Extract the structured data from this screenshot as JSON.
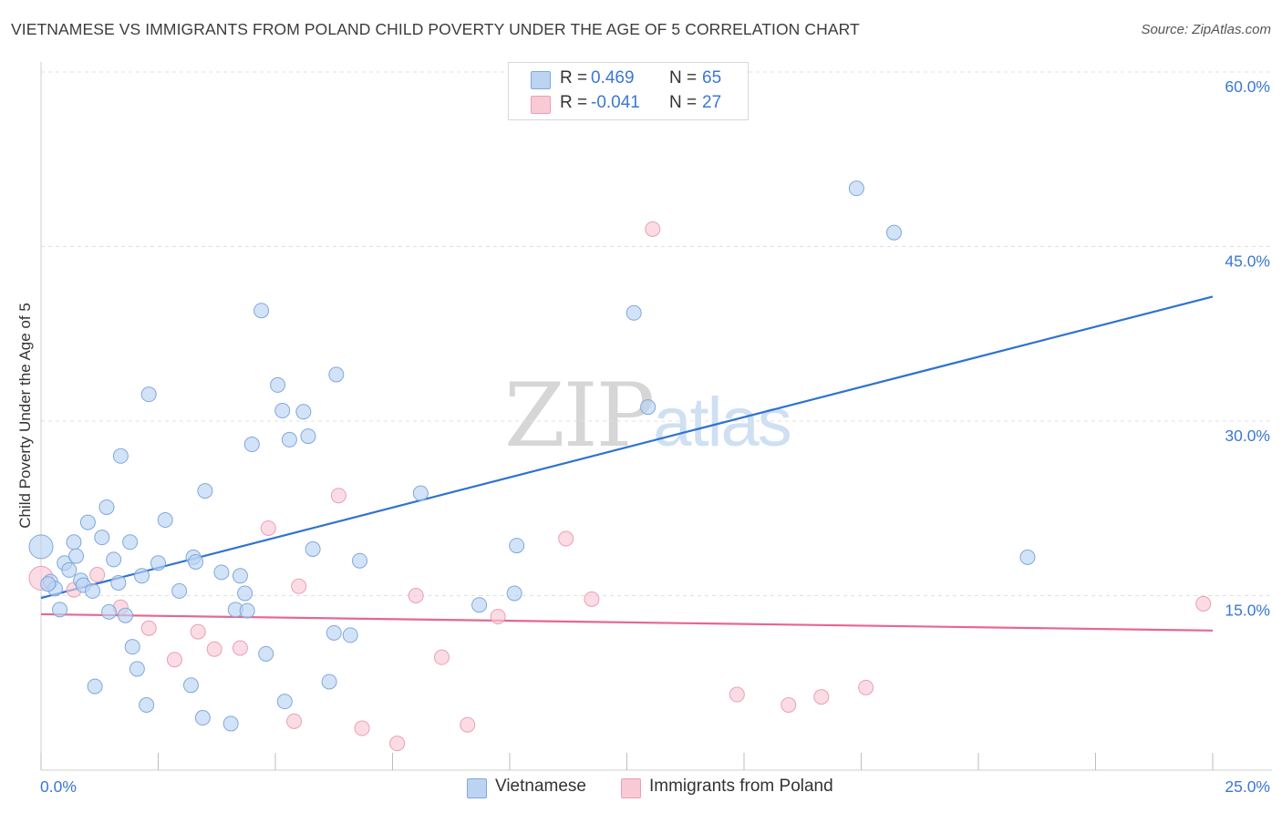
{
  "title": "VIETNAMESE VS IMMIGRANTS FROM POLAND CHILD POVERTY UNDER THE AGE OF 5 CORRELATION CHART",
  "source": "Source: ZipAtlas.com",
  "watermark": {
    "zip": "ZIP",
    "atlas": "atlas"
  },
  "colors": {
    "blue_fill": "#bcd4f2",
    "blue_stroke": "#7ea8dd",
    "blue_line": "#2e73cf",
    "pink_fill": "#f9c9d6",
    "pink_stroke": "#ea9fb5",
    "pink_line": "#e7668f",
    "tick_label": "#3a78d0",
    "grid": "#e0e0e0"
  },
  "legend_top": {
    "rows": [
      {
        "r_label": "R =",
        "r_value": "0.469",
        "n_label": "N =",
        "n_value": "65"
      },
      {
        "r_label": "R =",
        "r_value": "-0.041",
        "n_label": "N =",
        "n_value": "27"
      }
    ]
  },
  "bottom_legend": [
    "Vietnamese",
    "Immigrants from Poland"
  ],
  "chart_data": {
    "type": "scatter",
    "title": "VIETNAMESE VS IMMIGRANTS FROM POLAND CHILD POVERTY UNDER THE AGE OF 5 CORRELATION CHART",
    "xlabel": "",
    "ylabel": "Child Poverty Under the Age of 5",
    "xlim": [
      0,
      25
    ],
    "ylim": [
      0,
      60
    ],
    "x_tick_labels": [
      "0.0%",
      "25.0%"
    ],
    "y_ticks": [
      15,
      30,
      45,
      60
    ],
    "y_tick_labels": [
      "15.0%",
      "30.0%",
      "45.0%",
      "60.0%"
    ],
    "grid": "horizontal dashed",
    "legend": "top-center",
    "series": [
      {
        "name": "Vietnamese",
        "points": [
          [
            0.0,
            19.2
          ],
          [
            0.2,
            16.2
          ],
          [
            0.3,
            15.6
          ],
          [
            0.4,
            13.8
          ],
          [
            0.5,
            17.8
          ],
          [
            0.6,
            17.2
          ],
          [
            0.7,
            19.6
          ],
          [
            0.75,
            18.4
          ],
          [
            0.85,
            16.3
          ],
          [
            0.9,
            15.9
          ],
          [
            1.0,
            21.3
          ],
          [
            1.1,
            15.4
          ],
          [
            1.15,
            7.2
          ],
          [
            1.3,
            20.0
          ],
          [
            1.4,
            22.6
          ],
          [
            1.45,
            13.6
          ],
          [
            1.55,
            18.1
          ],
          [
            1.65,
            16.1
          ],
          [
            1.7,
            27.0
          ],
          [
            1.8,
            13.3
          ],
          [
            1.9,
            19.6
          ],
          [
            1.95,
            10.6
          ],
          [
            2.05,
            8.7
          ],
          [
            2.15,
            16.7
          ],
          [
            2.25,
            5.6
          ],
          [
            2.3,
            32.3
          ],
          [
            2.5,
            17.8
          ],
          [
            2.65,
            21.5
          ],
          [
            2.95,
            15.4
          ],
          [
            3.2,
            7.3
          ],
          [
            3.25,
            18.3
          ],
          [
            3.3,
            17.9
          ],
          [
            3.45,
            4.5
          ],
          [
            3.5,
            24.0
          ],
          [
            3.85,
            17.0
          ],
          [
            4.05,
            4.0
          ],
          [
            4.15,
            13.8
          ],
          [
            4.25,
            16.7
          ],
          [
            4.35,
            15.2
          ],
          [
            4.4,
            13.7
          ],
          [
            4.5,
            28.0
          ],
          [
            4.7,
            39.5
          ],
          [
            4.8,
            10.0
          ],
          [
            5.05,
            33.1
          ],
          [
            5.15,
            30.9
          ],
          [
            5.2,
            5.9
          ],
          [
            5.3,
            28.4
          ],
          [
            5.6,
            30.8
          ],
          [
            5.7,
            28.7
          ],
          [
            5.8,
            19.0
          ],
          [
            6.15,
            7.6
          ],
          [
            6.25,
            11.8
          ],
          [
            6.3,
            34.0
          ],
          [
            6.6,
            11.6
          ],
          [
            6.8,
            18.0
          ],
          [
            8.1,
            23.8
          ],
          [
            9.35,
            14.2
          ],
          [
            10.1,
            15.2
          ],
          [
            10.15,
            19.3
          ],
          [
            12.65,
            39.3
          ],
          [
            12.95,
            31.2
          ],
          [
            17.4,
            50.0
          ],
          [
            18.2,
            46.2
          ],
          [
            21.05,
            18.3
          ],
          [
            0.15,
            16.0
          ]
        ]
      },
      {
        "name": "Immigrants from Poland",
        "points": [
          [
            0.0,
            16.5
          ],
          [
            0.7,
            15.5
          ],
          [
            1.2,
            16.8
          ],
          [
            1.7,
            14.0
          ],
          [
            2.3,
            12.2
          ],
          [
            2.85,
            9.5
          ],
          [
            3.35,
            11.9
          ],
          [
            3.7,
            10.4
          ],
          [
            4.25,
            10.5
          ],
          [
            4.85,
            20.8
          ],
          [
            5.4,
            4.2
          ],
          [
            5.5,
            15.8
          ],
          [
            6.35,
            23.6
          ],
          [
            6.85,
            3.6
          ],
          [
            7.6,
            2.3
          ],
          [
            8.0,
            15.0
          ],
          [
            8.55,
            9.7
          ],
          [
            9.1,
            3.9
          ],
          [
            9.75,
            13.2
          ],
          [
            11.2,
            19.9
          ],
          [
            11.75,
            14.7
          ],
          [
            13.05,
            46.5
          ],
          [
            14.85,
            6.5
          ],
          [
            15.95,
            5.6
          ],
          [
            16.65,
            6.3
          ],
          [
            17.6,
            7.1
          ],
          [
            24.8,
            14.3
          ]
        ]
      }
    ],
    "trend_lines": [
      {
        "series": "Vietnamese",
        "x": [
          0,
          25
        ],
        "y": [
          14.8,
          40.7
        ]
      },
      {
        "series": "Immigrants from Poland",
        "x": [
          0,
          25
        ],
        "y": [
          13.4,
          12.0
        ]
      }
    ]
  }
}
